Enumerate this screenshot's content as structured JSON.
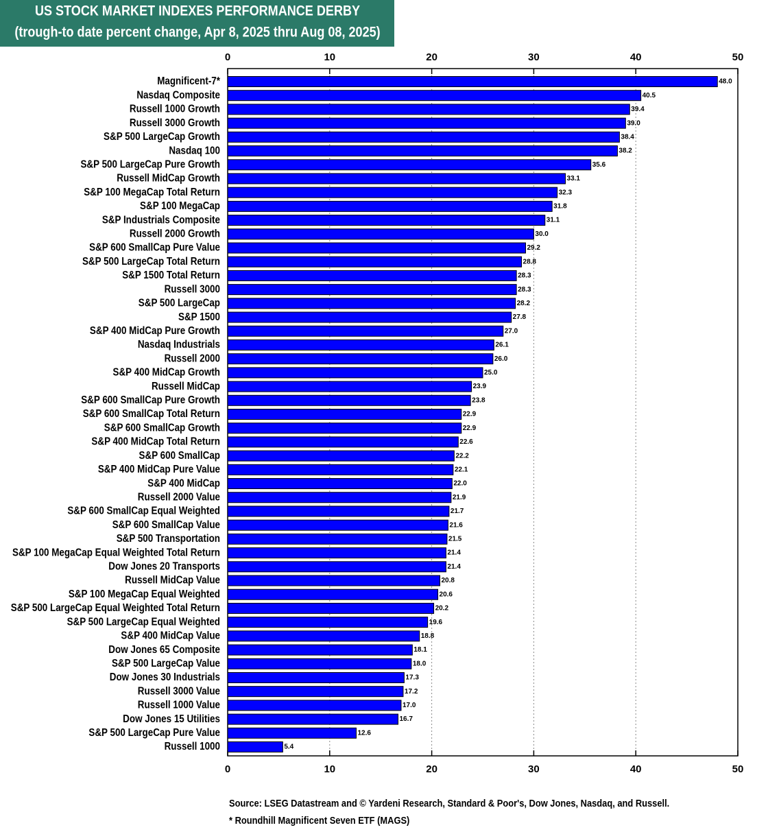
{
  "chart_data": {
    "type": "barh",
    "title": "US STOCK MARKET INDEXES PERFORMANCE DERBY",
    "subtitle": "(trough-to date percent change, Apr 8, 2025 thru Aug 08, 2025)",
    "source": "Source: LSEG Datastream and © Yardeni Research, Standard & Poor's, Dow Jones, Nasdaq, and Russell.",
    "note": "* Roundhill Magnificent Seven ETF (MAGS)",
    "categories": [
      "Magnificent-7*",
      "Nasdaq Composite",
      "Russell 1000 Growth",
      "Russell 3000 Growth",
      "S&P 500 LargeCap Growth",
      "Nasdaq 100",
      "S&P 500 LargeCap Pure Growth",
      "Russell MidCap Growth",
      "S&P 100 MegaCap Total Return",
      "S&P 100 MegaCap",
      "S&P Industrials Composite",
      "Russell 2000 Growth",
      "S&P 600 SmallCap Pure Value",
      "S&P 500 LargeCap Total Return",
      "S&P 1500 Total Return",
      "Russell 3000",
      "S&P 500 LargeCap",
      "S&P 1500",
      "S&P 400 MidCap Pure Growth",
      "Nasdaq Industrials",
      "Russell 2000",
      "S&P 400 MidCap Growth",
      "Russell MidCap",
      "S&P 600 SmallCap Pure Growth",
      "S&P 600 SmallCap Total Return",
      "S&P 600 SmallCap Growth",
      "S&P 400 MidCap Total Return",
      "S&P 600 SmallCap",
      "S&P 400 MidCap Pure Value",
      "S&P 400 MidCap",
      "Russell 2000 Value",
      "S&P 600 SmallCap Equal Weighted",
      "S&P 600 SmallCap Value",
      "S&P 500 Transportation",
      "S&P 100 MegaCap Equal Weighted Total Return",
      "Dow Jones 20 Transports",
      "Russell MidCap Value",
      "S&P 100 MegaCap Equal Weighted",
      "S&P 500 LargeCap Equal Weighted Total Return",
      "S&P 500 LargeCap Equal Weighted",
      "S&P 400 MidCap Value",
      "Dow Jones 65 Composite",
      "S&P 500 LargeCap Value",
      "Dow Jones 30 Industrials",
      "Russell 3000 Value",
      "Russell 1000 Value",
      "Dow Jones 15 Utilities",
      "S&P 500 LargeCap Pure Value",
      "Russell 1000"
    ],
    "values": [
      48.0,
      40.5,
      39.4,
      39.0,
      38.4,
      38.2,
      35.6,
      33.1,
      32.3,
      31.8,
      31.1,
      30.0,
      29.2,
      28.8,
      28.3,
      28.3,
      28.2,
      27.8,
      27.0,
      26.1,
      26.0,
      25.0,
      23.9,
      23.8,
      22.9,
      22.9,
      22.6,
      22.2,
      22.1,
      22.0,
      21.9,
      21.7,
      21.6,
      21.5,
      21.4,
      21.4,
      20.8,
      20.6,
      20.2,
      19.6,
      18.8,
      18.1,
      18.0,
      17.3,
      17.2,
      17.0,
      16.7,
      12.6,
      5.4
    ],
    "value_labels": [
      "48.0",
      "40.5",
      "39.4",
      "39.0",
      "38.4",
      "38.2",
      "35.6",
      "33.1",
      "32.3",
      "31.8",
      "31.1",
      "30.0",
      "29.2",
      "28.8",
      "28.3",
      "28.3",
      "28.2",
      "27.8",
      "27.0",
      "26.1",
      "26.0",
      "25.0",
      "23.9",
      "23.8",
      "22.9",
      "22.9",
      "22.6",
      "22.2",
      "22.1",
      "22.0",
      "21.9",
      "21.7",
      "21.6",
      "21.5",
      "21.4",
      "21.4",
      "20.8",
      "20.6",
      "20.2",
      "19.6",
      "18.8",
      "18.1",
      "18.0",
      "17.3",
      "17.2",
      "17.0",
      "16.7",
      "12.6",
      "5.4"
    ],
    "color": "#0000ff",
    "xlim": [
      0,
      50
    ],
    "xticks": [
      0,
      10,
      20,
      30,
      40,
      50
    ],
    "grid": true
  }
}
